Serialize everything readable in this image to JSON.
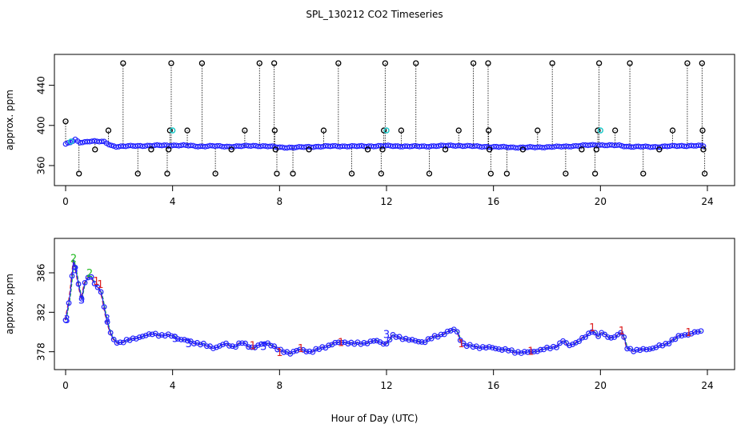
{
  "chart_data": {
    "title": "SPL_130212  CO2 Timeseries",
    "xlabel": "Hour of Day (UTC)",
    "colors": {
      "outline": "#000000",
      "series_blue": "#2020ff",
      "series_green": "#22bb22",
      "series_red": "#dd2222",
      "series_cyan": "#22cccc"
    },
    "panels": [
      {
        "id": "top",
        "type": "scatter",
        "ylabel": "approx. ppm",
        "xlim": [
          0,
          24
        ],
        "ylim": [
          348,
          466
        ],
        "xticks": [
          "0",
          "4",
          "8",
          "12",
          "16",
          "20",
          "24"
        ],
        "xtick_values": [
          0,
          4,
          8,
          12,
          16,
          20,
          24
        ],
        "yticks": [
          "360",
          "400",
          "440"
        ],
        "ytick_values": [
          360,
          400,
          440
        ],
        "baseline_knots": [
          [
            0.0,
            381.5
          ],
          [
            0.2,
            383
          ],
          [
            0.35,
            386
          ],
          [
            0.5,
            383
          ],
          [
            0.7,
            383.5
          ],
          [
            0.95,
            384.5
          ],
          [
            1.2,
            384
          ],
          [
            1.45,
            383.5
          ],
          [
            1.7,
            380
          ],
          [
            1.9,
            379
          ],
          [
            2.5,
            379.5
          ],
          [
            3.0,
            379.8
          ],
          [
            3.5,
            380
          ],
          [
            4.0,
            380.2
          ],
          [
            4.5,
            380
          ],
          [
            5.0,
            379.2
          ],
          [
            5.5,
            379.5
          ],
          [
            6.0,
            379
          ],
          [
            6.5,
            379.2
          ],
          [
            7.0,
            379.8
          ],
          [
            7.5,
            379.3
          ],
          [
            8.0,
            378.2
          ],
          [
            8.5,
            378
          ],
          [
            9.0,
            378.5
          ],
          [
            9.5,
            379
          ],
          [
            10.0,
            379.3
          ],
          [
            10.5,
            379.3
          ],
          [
            11.0,
            379.2
          ],
          [
            11.5,
            379.4
          ],
          [
            12.0,
            379.6
          ],
          [
            12.5,
            379.3
          ],
          [
            13.0,
            379.1
          ],
          [
            13.5,
            379.2
          ],
          [
            14.0,
            379.6
          ],
          [
            14.5,
            380
          ],
          [
            15.0,
            379.5
          ],
          [
            15.5,
            379
          ],
          [
            16.0,
            378.6
          ],
          [
            16.5,
            378.4
          ],
          [
            17.0,
            378
          ],
          [
            17.5,
            378.2
          ],
          [
            18.0,
            378.5
          ],
          [
            18.5,
            378.8
          ],
          [
            19.0,
            379.5
          ],
          [
            19.5,
            380.2
          ],
          [
            19.9,
            380.6
          ],
          [
            20.3,
            380.2
          ],
          [
            20.7,
            380
          ],
          [
            21.0,
            379
          ],
          [
            21.5,
            378.8
          ],
          [
            22.0,
            378.6
          ],
          [
            22.5,
            379.2
          ],
          [
            23.0,
            379.6
          ],
          [
            23.5,
            379.8
          ],
          [
            23.9,
            379.5
          ]
        ],
        "spikes": [
          {
            "x": 0.0,
            "y": 404
          },
          {
            "x": 0.5,
            "y": 352
          },
          {
            "x": 1.1,
            "y": 376
          },
          {
            "x": 1.6,
            "y": 395
          },
          {
            "x": 2.15,
            "y": 462
          },
          {
            "x": 2.7,
            "y": 352
          },
          {
            "x": 3.2,
            "y": 376
          },
          {
            "x": 3.8,
            "y": 352
          },
          {
            "x": 3.85,
            "y": 376
          },
          {
            "x": 3.9,
            "y": 395
          },
          {
            "x": 3.95,
            "y": 462
          },
          {
            "x": 4.55,
            "y": 395
          },
          {
            "x": 5.1,
            "y": 462
          },
          {
            "x": 5.6,
            "y": 352
          },
          {
            "x": 6.2,
            "y": 376
          },
          {
            "x": 6.7,
            "y": 395
          },
          {
            "x": 7.25,
            "y": 462
          },
          {
            "x": 7.8,
            "y": 462
          },
          {
            "x": 7.82,
            "y": 395
          },
          {
            "x": 7.85,
            "y": 376
          },
          {
            "x": 7.9,
            "y": 352
          },
          {
            "x": 8.5,
            "y": 352
          },
          {
            "x": 9.1,
            "y": 376
          },
          {
            "x": 9.65,
            "y": 395
          },
          {
            "x": 10.2,
            "y": 462
          },
          {
            "x": 10.7,
            "y": 352
          },
          {
            "x": 11.3,
            "y": 376
          },
          {
            "x": 11.8,
            "y": 352
          },
          {
            "x": 11.85,
            "y": 376
          },
          {
            "x": 11.9,
            "y": 395
          },
          {
            "x": 11.95,
            "y": 462
          },
          {
            "x": 12.55,
            "y": 395
          },
          {
            "x": 13.1,
            "y": 462
          },
          {
            "x": 13.6,
            "y": 352
          },
          {
            "x": 14.2,
            "y": 376
          },
          {
            "x": 14.7,
            "y": 395
          },
          {
            "x": 15.25,
            "y": 462
          },
          {
            "x": 15.8,
            "y": 462
          },
          {
            "x": 15.82,
            "y": 395
          },
          {
            "x": 15.85,
            "y": 376
          },
          {
            "x": 15.9,
            "y": 352
          },
          {
            "x": 16.5,
            "y": 352
          },
          {
            "x": 17.1,
            "y": 376
          },
          {
            "x": 17.65,
            "y": 395
          },
          {
            "x": 18.2,
            "y": 462
          },
          {
            "x": 18.7,
            "y": 352
          },
          {
            "x": 19.3,
            "y": 376
          },
          {
            "x": 19.8,
            "y": 352
          },
          {
            "x": 19.85,
            "y": 376
          },
          {
            "x": 19.9,
            "y": 395
          },
          {
            "x": 19.95,
            "y": 462
          },
          {
            "x": 20.55,
            "y": 395
          },
          {
            "x": 21.1,
            "y": 462
          },
          {
            "x": 21.6,
            "y": 352
          },
          {
            "x": 22.2,
            "y": 376
          },
          {
            "x": 22.7,
            "y": 395
          },
          {
            "x": 23.25,
            "y": 462
          },
          {
            "x": 23.8,
            "y": 462
          },
          {
            "x": 23.82,
            "y": 395
          },
          {
            "x": 23.85,
            "y": 376
          },
          {
            "x": 23.9,
            "y": 352
          }
        ],
        "cyan_markers": [
          {
            "x": 0.2,
            "y": 384
          },
          {
            "x": 4.0,
            "y": 395
          },
          {
            "x": 12.0,
            "y": 395
          },
          {
            "x": 20.0,
            "y": 395
          }
        ]
      },
      {
        "id": "bottom",
        "type": "line",
        "ylabel": "approx. ppm",
        "xlim": [
          0,
          24
        ],
        "ylim": [
          377,
          389
        ],
        "xticks": [
          "0",
          "4",
          "8",
          "12",
          "16",
          "20",
          "24"
        ],
        "xtick_values": [
          0,
          4,
          8,
          12,
          16,
          20,
          24
        ],
        "yticks": [
          "378",
          "382",
          "386"
        ],
        "ytick_values": [
          378,
          382,
          386
        ],
        "knots": [
          [
            0.0,
            381.2
          ],
          [
            0.1,
            382.5
          ],
          [
            0.2,
            384.5
          ],
          [
            0.3,
            387.2
          ],
          [
            0.4,
            386.2
          ],
          [
            0.5,
            384.5
          ],
          [
            0.6,
            383.5
          ],
          [
            0.7,
            384.8
          ],
          [
            0.85,
            385.6
          ],
          [
            1.0,
            385.4
          ],
          [
            1.15,
            384.6
          ],
          [
            1.3,
            384.4
          ],
          [
            1.45,
            382.4
          ],
          [
            1.6,
            380.4
          ],
          [
            1.8,
            379.2
          ],
          [
            2.0,
            378.9
          ],
          [
            2.3,
            379.1
          ],
          [
            2.6,
            379.4
          ],
          [
            3.0,
            379.6
          ],
          [
            3.3,
            379.9
          ],
          [
            3.6,
            379.6
          ],
          [
            4.0,
            379.7
          ],
          [
            4.3,
            379.2
          ],
          [
            4.6,
            379.1
          ],
          [
            5.0,
            378.8
          ],
          [
            5.3,
            378.6
          ],
          [
            5.6,
            378.4
          ],
          [
            6.0,
            378.8
          ],
          [
            6.3,
            378.5
          ],
          [
            6.6,
            378.9
          ],
          [
            7.0,
            378.4
          ],
          [
            7.3,
            378.7
          ],
          [
            7.6,
            378.9
          ],
          [
            8.0,
            378.1
          ],
          [
            8.4,
            377.9
          ],
          [
            8.8,
            378.2
          ],
          [
            9.2,
            378.0
          ],
          [
            9.6,
            378.4
          ],
          [
            10.0,
            378.8
          ],
          [
            10.4,
            379.0
          ],
          [
            10.8,
            378.8
          ],
          [
            11.2,
            378.9
          ],
          [
            11.6,
            379.1
          ],
          [
            12.0,
            378.8
          ],
          [
            12.2,
            379.6
          ],
          [
            12.6,
            379.4
          ],
          [
            13.0,
            379.1
          ],
          [
            13.4,
            379.0
          ],
          [
            13.8,
            379.5
          ],
          [
            14.2,
            379.9
          ],
          [
            14.6,
            380.3
          ],
          [
            14.8,
            379.0
          ],
          [
            15.0,
            378.6
          ],
          [
            15.4,
            378.5
          ],
          [
            15.8,
            378.4
          ],
          [
            16.0,
            378.4
          ],
          [
            16.4,
            378.2
          ],
          [
            16.8,
            378.0
          ],
          [
            17.2,
            377.9
          ],
          [
            17.6,
            378.1
          ],
          [
            18.0,
            378.3
          ],
          [
            18.4,
            378.6
          ],
          [
            18.6,
            379.1
          ],
          [
            18.8,
            378.6
          ],
          [
            19.2,
            379.1
          ],
          [
            19.5,
            379.6
          ],
          [
            19.7,
            380.2
          ],
          [
            19.9,
            379.6
          ],
          [
            20.1,
            379.9
          ],
          [
            20.3,
            379.4
          ],
          [
            20.6,
            379.6
          ],
          [
            20.8,
            380.0
          ],
          [
            21.0,
            378.4
          ],
          [
            21.3,
            378.1
          ],
          [
            21.6,
            378.2
          ],
          [
            22.0,
            378.4
          ],
          [
            22.4,
            378.7
          ],
          [
            22.7,
            379.2
          ],
          [
            23.0,
            379.6
          ],
          [
            23.3,
            379.8
          ],
          [
            23.6,
            380.0
          ],
          [
            23.8,
            380.0
          ]
        ],
        "digit_labels": [
          {
            "x": 0.3,
            "y": 387.4,
            "text": "2"
          },
          {
            "x": 0.35,
            "y": 386.3,
            "text": "3"
          },
          {
            "x": 0.6,
            "y": 383.2,
            "text": "3"
          },
          {
            "x": 0.9,
            "y": 385.9,
            "text": "2"
          },
          {
            "x": 1.3,
            "y": 384.8,
            "text": "1"
          },
          {
            "x": 1.55,
            "y": 381.3,
            "text": "3"
          },
          {
            "x": 0.05,
            "y": 381.2,
            "text": "3"
          },
          {
            "x": 1.15,
            "y": 385.1,
            "text": "1"
          },
          {
            "x": 4.1,
            "y": 379.3,
            "text": "3"
          },
          {
            "x": 4.6,
            "y": 378.8,
            "text": "3"
          },
          {
            "x": 7.0,
            "y": 378.6,
            "text": "1"
          },
          {
            "x": 7.4,
            "y": 378.5,
            "text": "3"
          },
          {
            "x": 8.0,
            "y": 377.9,
            "text": "1"
          },
          {
            "x": 8.8,
            "y": 378.3,
            "text": "1"
          },
          {
            "x": 10.3,
            "y": 378.9,
            "text": "1"
          },
          {
            "x": 12.0,
            "y": 379.7,
            "text": "3"
          },
          {
            "x": 14.8,
            "y": 378.8,
            "text": "1"
          },
          {
            "x": 17.4,
            "y": 378.0,
            "text": "1"
          },
          {
            "x": 19.7,
            "y": 380.4,
            "text": "1"
          },
          {
            "x": 20.8,
            "y": 380.1,
            "text": "1"
          },
          {
            "x": 23.3,
            "y": 379.9,
            "text": "1"
          }
        ]
      }
    ]
  }
}
